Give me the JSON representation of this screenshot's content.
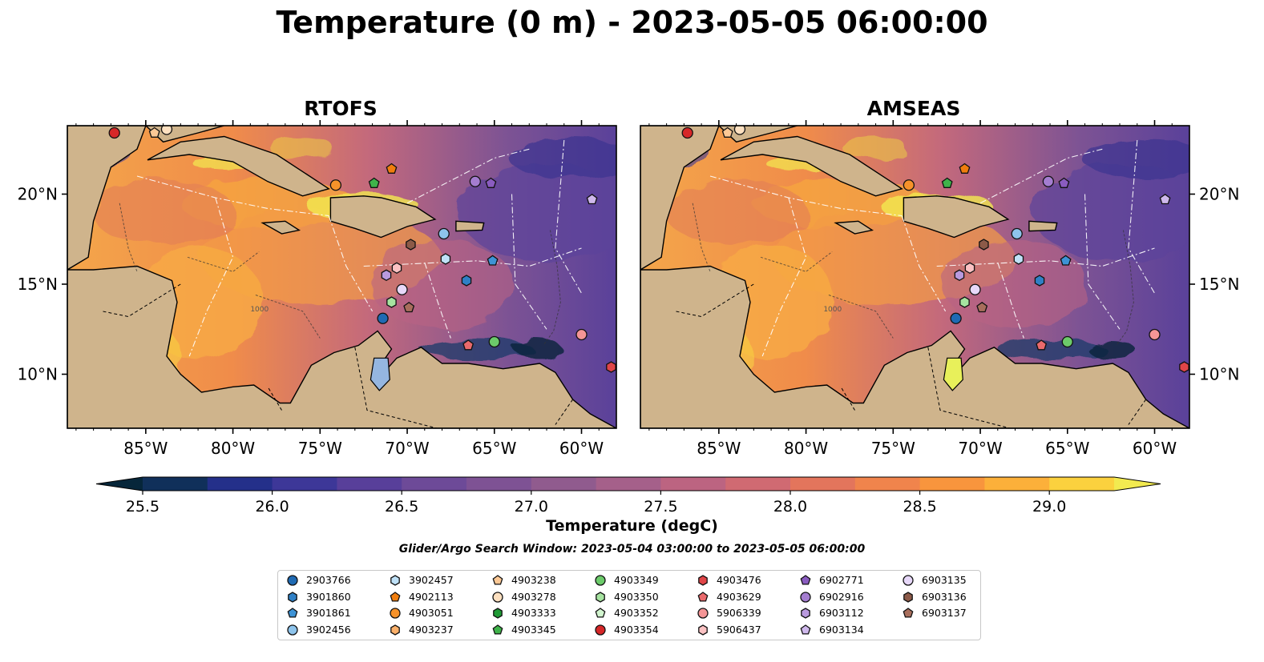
{
  "title": "Temperature (0 m) - 2023-05-05 06:00:00",
  "panels": [
    {
      "title": "RTOFS"
    },
    {
      "title": "AMSEAS"
    }
  ],
  "axes": {
    "lon_ticks": [
      "85°W",
      "80°W",
      "75°W",
      "70°W",
      "65°W",
      "60°W"
    ],
    "lat_ticks": [
      "20°N",
      "15°N",
      "10°N"
    ]
  },
  "colorbar": {
    "label": "Temperature (degC)",
    "ticks": [
      "25.5",
      "26.0",
      "26.5",
      "27.0",
      "27.5",
      "28.0",
      "28.5",
      "29.0"
    ],
    "colors": [
      "#06263a",
      "#10305a",
      "#24308a",
      "#3d3798",
      "#583f9a",
      "#6d4a98",
      "#7e5294",
      "#905b8e",
      "#a5608a",
      "#bc6481",
      "#d06a72",
      "#e3755c",
      "#f0844c",
      "#f8953d",
      "#fcb03a",
      "#fbd13e",
      "#f2ea50"
    ]
  },
  "contour_labels": [
    "1000"
  ],
  "search_window": "Glider/Argo Search Window: 2023-05-04 03:00:00 to 2023-05-05 06:00:00",
  "legend": [
    {
      "label": "2903766",
      "marker": "circle",
      "color": "#1f6ab3"
    },
    {
      "label": "3901860",
      "marker": "hexagon",
      "color": "#2f80c6"
    },
    {
      "label": "3901861",
      "marker": "pentagon",
      "color": "#3d93d6"
    },
    {
      "label": "3902456",
      "marker": "circle",
      "color": "#8ec4ec"
    },
    {
      "label": "3902457",
      "marker": "hexagon",
      "color": "#bfe1f7"
    },
    {
      "label": "4902113",
      "marker": "pentagon",
      "color": "#f07d0e"
    },
    {
      "label": "4903051",
      "marker": "circle",
      "color": "#f6922a"
    },
    {
      "label": "4903237",
      "marker": "hexagon",
      "color": "#fbb06a"
    },
    {
      "label": "4903238",
      "marker": "pentagon",
      "color": "#fcc895"
    },
    {
      "label": "4903278",
      "marker": "circle",
      "color": "#fde0c0"
    },
    {
      "label": "4903333",
      "marker": "hexagon",
      "color": "#1f9a35"
    },
    {
      "label": "4903345",
      "marker": "pentagon",
      "color": "#3fb34a"
    },
    {
      "label": "4903349",
      "marker": "circle",
      "color": "#6ccb6a"
    },
    {
      "label": "4903350",
      "marker": "hexagon",
      "color": "#a6e3a0"
    },
    {
      "label": "4903352",
      "marker": "pentagon",
      "color": "#d2f5cf"
    },
    {
      "label": "4903354",
      "marker": "circle",
      "color": "#d62728"
    },
    {
      "label": "4903476",
      "marker": "hexagon",
      "color": "#e04548"
    },
    {
      "label": "4903629",
      "marker": "pentagon",
      "color": "#ea6a6c"
    },
    {
      "label": "5906339",
      "marker": "circle",
      "color": "#f49596"
    },
    {
      "label": "5906437",
      "marker": "hexagon",
      "color": "#fbc2c3"
    },
    {
      "label": "6902771",
      "marker": "pentagon",
      "color": "#8a5cc0"
    },
    {
      "label": "6902916",
      "marker": "circle",
      "color": "#a47dd0"
    },
    {
      "label": "6903112",
      "marker": "hexagon",
      "color": "#b99ade"
    },
    {
      "label": "6903134",
      "marker": "pentagon",
      "color": "#cfb8ec"
    },
    {
      "label": "6903135",
      "marker": "circle",
      "color": "#e7d8f9"
    },
    {
      "label": "6903136",
      "marker": "hexagon",
      "color": "#8c5a48"
    },
    {
      "label": "6903137",
      "marker": "pentagon",
      "color": "#a86e5c"
    }
  ],
  "map_extent": {
    "lon": [
      -89.5,
      -58.0
    ],
    "lat": [
      7.0,
      23.8
    ]
  },
  "floats": [
    {
      "id": "4903354",
      "lon": -86.8,
      "lat": 23.4
    },
    {
      "id": "4903238",
      "lon": -84.5,
      "lat": 23.4
    },
    {
      "id": "4903278",
      "lon": -83.8,
      "lat": 23.6
    },
    {
      "id": "4903051",
      "lon": -74.1,
      "lat": 20.5
    },
    {
      "id": "4903345",
      "lon": -71.9,
      "lat": 20.6
    },
    {
      "id": "4902113",
      "lon": -70.9,
      "lat": 21.4
    },
    {
      "id": "6902916",
      "lon": -66.1,
      "lat": 20.7
    },
    {
      "id": "6902771",
      "lon": -65.2,
      "lat": 20.6
    },
    {
      "id": "6903134",
      "lon": -59.4,
      "lat": 19.7
    },
    {
      "id": "3902456",
      "lon": -67.9,
      "lat": 17.8
    },
    {
      "id": "6903136",
      "lon": -69.8,
      "lat": 17.2
    },
    {
      "id": "3902457",
      "lon": -67.8,
      "lat": 16.4
    },
    {
      "id": "3901861",
      "lon": -65.1,
      "lat": 16.3
    },
    {
      "id": "5906437",
      "lon": -70.6,
      "lat": 15.9
    },
    {
      "id": "3901860",
      "lon": -66.6,
      "lat": 15.2
    },
    {
      "id": "6903112",
      "lon": -71.2,
      "lat": 15.5
    },
    {
      "id": "6903135",
      "lon": -70.3,
      "lat": 14.7
    },
    {
      "id": "4903350",
      "lon": -70.9,
      "lat": 14.0
    },
    {
      "id": "6903137",
      "lon": -69.9,
      "lat": 13.7
    },
    {
      "id": "2903766",
      "lon": -71.4,
      "lat": 13.1
    },
    {
      "id": "4903629",
      "lon": -66.5,
      "lat": 11.6
    },
    {
      "id": "4903349",
      "lon": -65.0,
      "lat": 11.8
    },
    {
      "id": "5906339",
      "lon": -60.0,
      "lat": 12.2
    },
    {
      "id": "4903476",
      "lon": -58.3,
      "lat": 10.4
    }
  ]
}
